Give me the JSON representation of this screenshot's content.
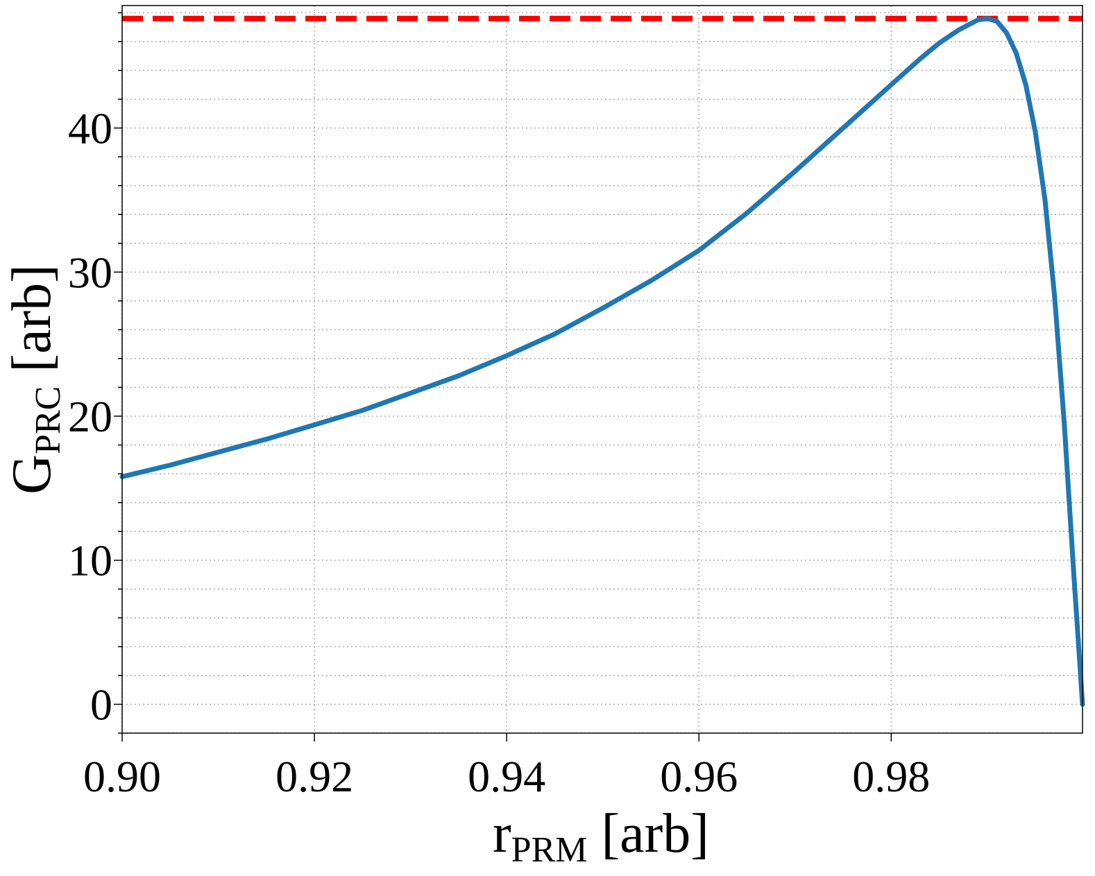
{
  "chart_data": {
    "type": "line",
    "xlabel": {
      "main": "r",
      "sub": "PRM",
      "unit": " [arb]"
    },
    "ylabel": {
      "main": "G",
      "sub": "PRC",
      "unit": " [arb]"
    },
    "xlim": [
      0.9,
      0.9999
    ],
    "ylim": [
      -2,
      48.5
    ],
    "x_ticks": [
      0.9,
      0.92,
      0.94,
      0.96,
      0.98
    ],
    "x_tick_labels": [
      "0.90",
      "0.92",
      "0.94",
      "0.96",
      "0.98"
    ],
    "y_ticks": [
      0,
      10,
      20,
      30,
      40
    ],
    "y_tick_labels": [
      "0",
      "10",
      "20",
      "30",
      "40"
    ],
    "y_minor_step": 2,
    "grid": true,
    "reference_line": {
      "y": 47.6,
      "color": "#ff0000",
      "style": "dashed"
    },
    "series": [
      {
        "color": "#1f77b4",
        "x": [
          0.9,
          0.905,
          0.91,
          0.915,
          0.92,
          0.925,
          0.93,
          0.935,
          0.94,
          0.945,
          0.95,
          0.955,
          0.96,
          0.965,
          0.97,
          0.975,
          0.98,
          0.983,
          0.985,
          0.987,
          0.989,
          0.99,
          0.991,
          0.992,
          0.993,
          0.994,
          0.995,
          0.996,
          0.997,
          0.998,
          0.999,
          0.9995,
          0.9999
        ],
        "y": [
          15.8,
          16.6,
          17.5,
          18.4,
          19.4,
          20.4,
          21.6,
          22.8,
          24.2,
          25.7,
          27.5,
          29.4,
          31.5,
          34.1,
          37.0,
          40.0,
          43.0,
          44.8,
          45.9,
          46.8,
          47.5,
          47.6,
          47.4,
          46.6,
          45.2,
          43.0,
          39.7,
          35.0,
          28.3,
          19.5,
          9.0,
          4.0,
          0.0
        ]
      }
    ]
  }
}
